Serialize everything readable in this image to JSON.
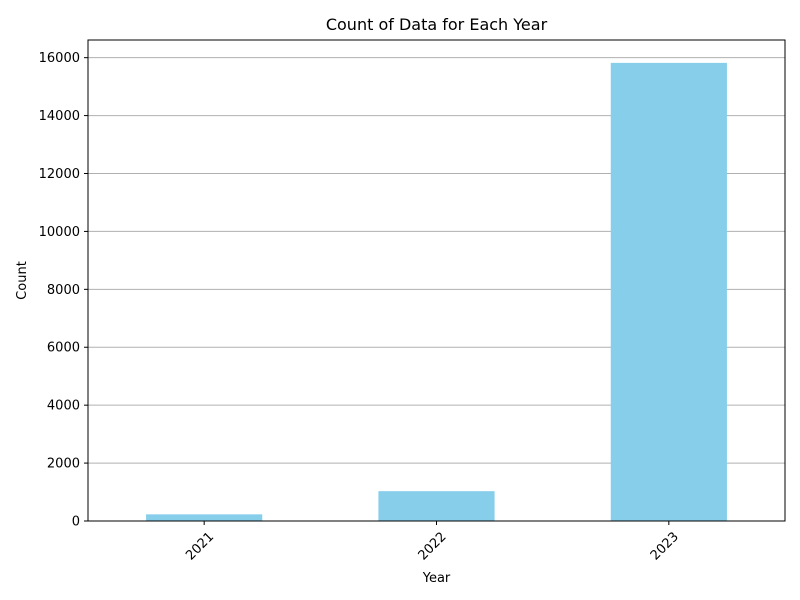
{
  "chart_data": {
    "type": "bar",
    "title": "Count of Data for Each Year",
    "xlabel": "Year",
    "ylabel": "Count",
    "categories": [
      "2021",
      "2022",
      "2023"
    ],
    "values": [
      230,
      1030,
      15820
    ],
    "ylim": [
      0,
      16610
    ],
    "yticks": [
      0,
      2000,
      4000,
      6000,
      8000,
      10000,
      12000,
      14000,
      16000
    ],
    "ytick_labels": [
      "0",
      "2000",
      "4000",
      "6000",
      "8000",
      "10000",
      "12000",
      "14000",
      "16000"
    ],
    "xtick_rotation_deg": 45,
    "grid": "horizontal",
    "legend": "none",
    "colors": {
      "bar": "#87ceeb",
      "grid": "#b0b0b0",
      "axis": "#000000"
    }
  }
}
